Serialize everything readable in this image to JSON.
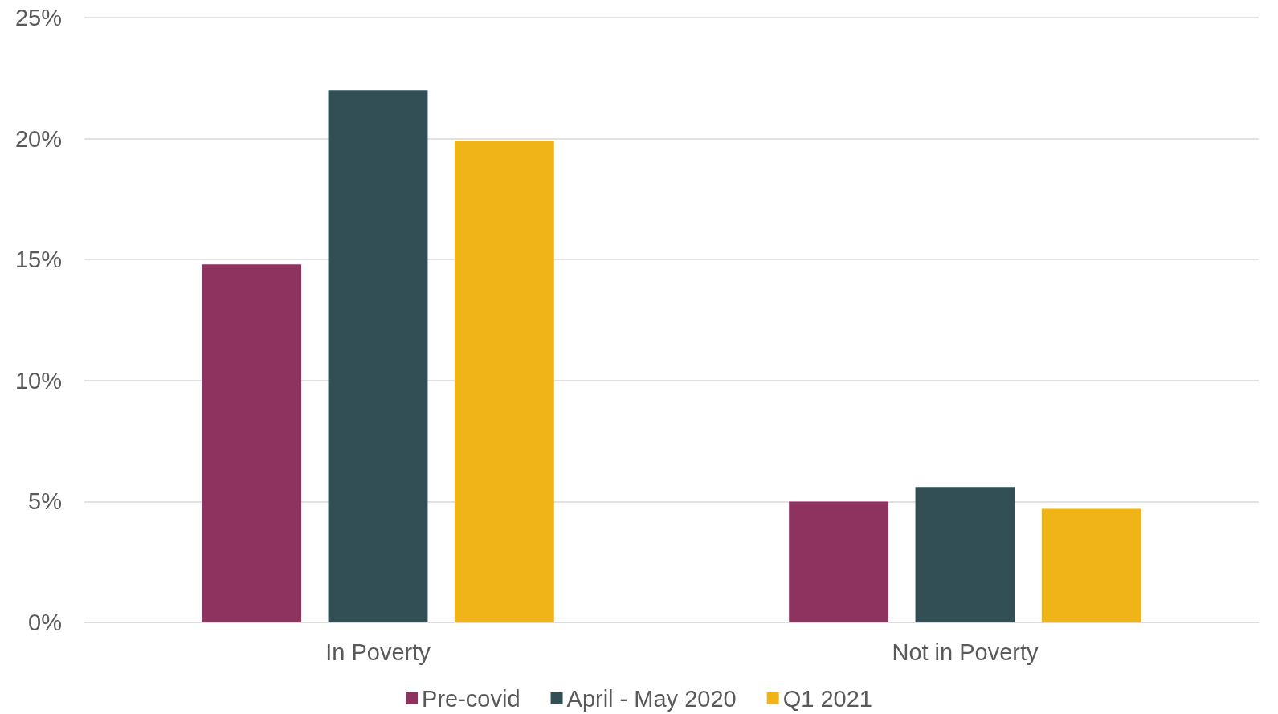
{
  "chart_data": {
    "type": "bar",
    "categories": [
      "In Poverty",
      "Not in Poverty"
    ],
    "series": [
      {
        "name": "Pre-covid",
        "color": "#8e3360",
        "values": [
          14.8,
          5.0
        ]
      },
      {
        "name": "April - May 2020",
        "color": "#314f55",
        "values": [
          22.0,
          5.6
        ]
      },
      {
        "name": "Q1 2021",
        "color": "#f0b418",
        "values": [
          19.9,
          4.7
        ]
      }
    ],
    "ylim": [
      0,
      25
    ],
    "yticks": [
      {
        "value": 0,
        "label": "0%"
      },
      {
        "value": 5,
        "label": "5%"
      },
      {
        "value": 10,
        "label": "10%"
      },
      {
        "value": 15,
        "label": "15%"
      },
      {
        "value": 20,
        "label": "20%"
      },
      {
        "value": 25,
        "label": "25%"
      }
    ],
    "grid": "y",
    "legend": "bottom"
  }
}
